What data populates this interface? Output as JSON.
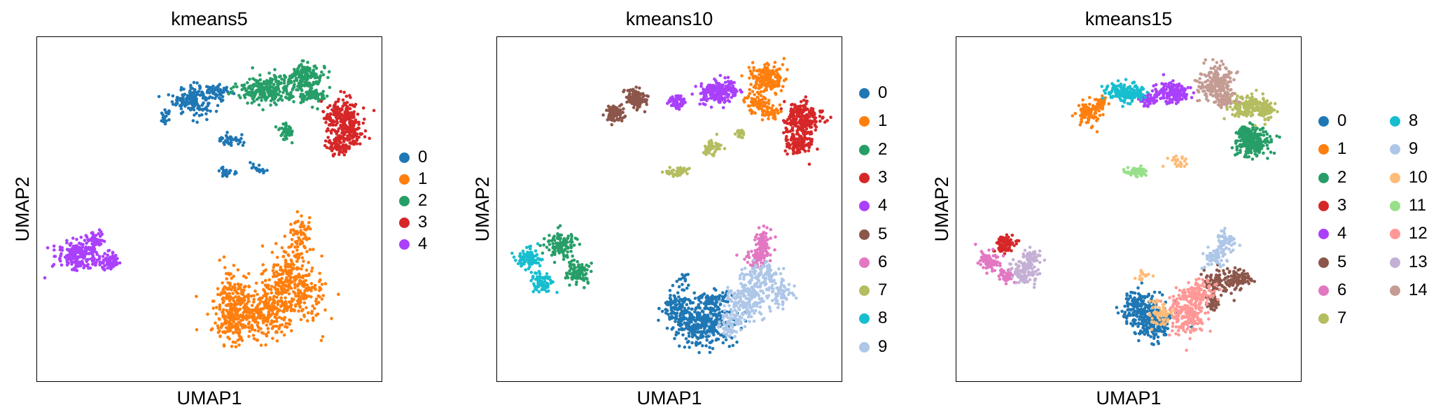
{
  "chart_data": [
    {
      "type": "scatter",
      "title": "kmeans5",
      "xlabel": "UMAP1",
      "ylabel": "UMAP2",
      "xlim": [
        0,
        100
      ],
      "ylim": [
        0,
        100
      ],
      "grid": false,
      "ticks": false,
      "legend_position": "right",
      "legend_columns": 1,
      "categories": [
        "0",
        "1",
        "2",
        "3",
        "4"
      ],
      "colors": [
        "#1f77b4",
        "#ff7f0e",
        "#279e68",
        "#d62728",
        "#aa40fc"
      ],
      "clusters": [
        {
          "label": "0",
          "points": 320,
          "blobs": [
            [
              45,
              82,
              4.5,
              3.5
            ],
            [
              53,
              84,
              3.0,
              1.6
            ],
            [
              37,
              77,
              1.5,
              1.5
            ],
            [
              56,
              70,
              3.0,
              1.3
            ],
            [
              55,
              61,
              1.8,
              1.3
            ],
            [
              64,
              62,
              2.0,
              1.0
            ]
          ]
        },
        {
          "label": "1",
          "points": 900,
          "blobs": [
            [
              64,
              20,
              10,
              6
            ],
            [
              74,
              26,
              8,
              6
            ],
            [
              73,
              33,
              4,
              4
            ],
            [
              76,
              42,
              3,
              5
            ],
            [
              57,
              25,
              4,
              7
            ],
            [
              56,
              16,
              4,
              4
            ]
          ]
        },
        {
          "label": "2",
          "points": 520,
          "blobs": [
            [
              67,
              85,
              7,
              3
            ],
            [
              78,
              88,
              4,
              3.5
            ],
            [
              80,
              83,
              3,
              2
            ],
            [
              72,
              73,
              2.0,
              2.0
            ]
          ]
        },
        {
          "label": "3",
          "points": 360,
          "blobs": [
            [
              88,
              77,
              4,
              4
            ],
            [
              87,
              69,
              3,
              2.5
            ],
            [
              91,
              72,
              2.5,
              3
            ]
          ]
        },
        {
          "label": "4",
          "points": 320,
          "blobs": [
            [
              12,
              37,
              5,
              3.5
            ],
            [
              21,
              35,
              3,
              2.2
            ],
            [
              17,
              41,
              2.5,
              1.8
            ]
          ]
        }
      ]
    },
    {
      "type": "scatter",
      "title": "kmeans10",
      "xlabel": "UMAP1",
      "ylabel": "UMAP2",
      "xlim": [
        0,
        100
      ],
      "ylim": [
        0,
        100
      ],
      "grid": false,
      "ticks": false,
      "legend_position": "right",
      "legend_columns": 1,
      "categories": [
        "0",
        "1",
        "2",
        "3",
        "4",
        "5",
        "6",
        "7",
        "8",
        "9"
      ],
      "colors": [
        "#1f77b4",
        "#ff7f0e",
        "#279e68",
        "#d62728",
        "#aa40fc",
        "#8c564b",
        "#e377c2",
        "#b5bd61",
        "#17becf",
        "#aec7e8"
      ],
      "clusters": [
        {
          "label": "0",
          "points": 520,
          "blobs": [
            [
              60,
              17,
              7,
              5
            ],
            [
              52,
              22,
              3,
              4
            ],
            [
              62,
              24,
              4,
              2
            ],
            [
              54,
              30,
              1.2,
              1.0
            ]
          ]
        },
        {
          "label": "1",
          "points": 300,
          "blobs": [
            [
              78,
              88,
              4,
              3.5
            ],
            [
              75,
              81,
              3,
              2
            ],
            [
              79,
              78,
              2,
              1.5
            ]
          ]
        },
        {
          "label": "2",
          "points": 200,
          "blobs": [
            [
              18,
              40,
              3.5,
              3
            ],
            [
              23,
              32,
              3,
              3
            ]
          ]
        },
        {
          "label": "3",
          "points": 340,
          "blobs": [
            [
              88,
              76,
              4,
              4
            ],
            [
              87,
              69,
              3,
              2.5
            ]
          ]
        },
        {
          "label": "4",
          "points": 280,
          "blobs": [
            [
              63,
              84,
              4,
              2.5
            ],
            [
              52,
              81,
              2.5,
              1.5
            ],
            [
              67,
              85,
              2.5,
              1.8
            ]
          ]
        },
        {
          "label": "5",
          "points": 200,
          "blobs": [
            [
              40,
              82,
              2.5,
              2.5
            ],
            [
              34,
              78,
              2.2,
              2.0
            ]
          ]
        },
        {
          "label": "6",
          "points": 140,
          "blobs": [
            [
              75,
              36,
              3.0,
              2.0
            ],
            [
              77,
              41,
              2.0,
              3.0
            ]
          ]
        },
        {
          "label": "7",
          "points": 120,
          "blobs": [
            [
              52,
              61,
              3.0,
              1.0
            ],
            [
              62,
              68,
              2.5,
              1.6
            ],
            [
              70,
              72,
              1.5,
              1.0
            ]
          ]
        },
        {
          "label": "8",
          "points": 160,
          "blobs": [
            [
              9,
              36,
              3,
              2.5
            ],
            [
              13,
              29,
              2.5,
              2.5
            ]
          ]
        },
        {
          "label": "9",
          "points": 420,
          "blobs": [
            [
              72,
              24,
              5,
              5
            ],
            [
              77,
              31,
              4,
              3
            ],
            [
              82,
              26,
              3,
              3
            ],
            [
              67,
              17,
              3,
              3
            ]
          ]
        }
      ]
    },
    {
      "type": "scatter",
      "title": "kmeans15",
      "xlabel": "UMAP1",
      "ylabel": "UMAP2",
      "xlim": [
        0,
        100
      ],
      "ylim": [
        0,
        100
      ],
      "grid": false,
      "ticks": false,
      "legend_position": "right",
      "legend_columns": 2,
      "categories": [
        "0",
        "1",
        "2",
        "3",
        "4",
        "5",
        "6",
        "7",
        "8",
        "9",
        "10",
        "11",
        "12",
        "13",
        "14"
      ],
      "colors": [
        "#1f77b4",
        "#ff7f0e",
        "#279e68",
        "#d62728",
        "#aa40fc",
        "#8c564b",
        "#e377c2",
        "#b5bd61",
        "#17becf",
        "#aec7e8",
        "#ffbb78",
        "#98df8a",
        "#ff9896",
        "#c5b0d5",
        "#c49c94"
      ],
      "clusters": [
        {
          "label": "0",
          "points": 340,
          "blobs": [
            [
              57,
              18,
              4,
              5
            ],
            [
              52,
              22,
              3,
              4
            ]
          ]
        },
        {
          "label": "1",
          "points": 130,
          "blobs": [
            [
              38,
              78,
              2.5,
              2.5
            ],
            [
              42,
              81,
              1.5,
              1.5
            ]
          ]
        },
        {
          "label": "2",
          "points": 280,
          "blobs": [
            [
              86,
              69,
              4,
              3
            ],
            [
              84,
              72,
              2.5,
              2
            ]
          ]
        },
        {
          "label": "3",
          "points": 90,
          "blobs": [
            [
              14,
              40,
              2.5,
              2.0
            ]
          ]
        },
        {
          "label": "4",
          "points": 250,
          "blobs": [
            [
              62,
              84,
              4,
              2.5
            ],
            [
              55,
              82,
              2.5,
              1.5
            ]
          ]
        },
        {
          "label": "5",
          "points": 220,
          "blobs": [
            [
              76,
              29,
              4,
              3
            ],
            [
              82,
              30,
              2.5,
              2.0
            ],
            [
              74,
              23,
              2.0,
              2.0
            ]
          ]
        },
        {
          "label": "6",
          "points": 120,
          "blobs": [
            [
              10,
              35,
              2.5,
              2.5
            ],
            [
              14,
              31,
              2.0,
              2.0
            ]
          ]
        },
        {
          "label": "7",
          "points": 240,
          "blobs": [
            [
              84,
              80,
              4,
              2.5
            ],
            [
              89,
              79,
              2.5,
              2.0
            ]
          ]
        },
        {
          "label": "8",
          "points": 180,
          "blobs": [
            [
              48,
              84,
              3.5,
              2.5
            ],
            [
              52,
              84,
              2,
              1.5
            ]
          ]
        },
        {
          "label": "9",
          "points": 120,
          "blobs": [
            [
              75,
              36,
              2.5,
              2.0
            ],
            [
              78,
              41,
              2.0,
              2.5
            ]
          ]
        },
        {
          "label": "10",
          "points": 100,
          "blobs": [
            [
              64,
              64,
              2.5,
              1.5
            ],
            [
              54,
              31,
              1.5,
              1.5
            ],
            [
              59,
              20,
              3,
              3
            ]
          ]
        },
        {
          "label": "11",
          "points": 70,
          "blobs": [
            [
              52,
              61,
              2.5,
              1.0
            ]
          ]
        },
        {
          "label": "12",
          "points": 330,
          "blobs": [
            [
              67,
              20,
              4,
              5
            ],
            [
              70,
              26,
              3.5,
              3
            ]
          ]
        },
        {
          "label": "13",
          "points": 150,
          "blobs": [
            [
              20,
              32,
              3.0,
              3.0
            ],
            [
              22,
              36,
              2.0,
              2.0
            ]
          ]
        },
        {
          "label": "14",
          "points": 260,
          "blobs": [
            [
              75,
              87,
              4,
              4
            ],
            [
              77,
              82,
              2.5,
              2.0
            ]
          ]
        }
      ]
    }
  ]
}
